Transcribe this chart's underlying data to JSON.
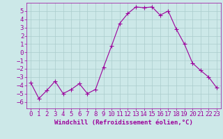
{
  "x": [
    0,
    1,
    2,
    3,
    4,
    5,
    6,
    7,
    8,
    9,
    10,
    11,
    12,
    13,
    14,
    15,
    16,
    17,
    18,
    19,
    20,
    21,
    22,
    23
  ],
  "y": [
    -3.7,
    -5.6,
    -4.6,
    -3.5,
    -5.0,
    -4.5,
    -3.8,
    -5.0,
    -4.5,
    -1.8,
    0.8,
    3.5,
    4.7,
    5.5,
    5.4,
    5.5,
    4.5,
    5.0,
    2.8,
    1.0,
    -1.3,
    -2.2,
    -3.0,
    -4.3
  ],
  "line_color": "#9b009b",
  "marker": "+",
  "marker_size": 4,
  "background_color": "#cce8e8",
  "grid_color": "#aacccc",
  "xlabel": "Windchill (Refroidissement éolien,°C)",
  "xlabel_color": "#9b009b",
  "ylim": [
    -6.8,
    6.0
  ],
  "xlim": [
    -0.5,
    23.5
  ],
  "yticks": [
    -6,
    -5,
    -4,
    -3,
    -2,
    -1,
    0,
    1,
    2,
    3,
    4,
    5
  ],
  "xticks": [
    0,
    1,
    2,
    3,
    4,
    5,
    6,
    7,
    8,
    9,
    10,
    11,
    12,
    13,
    14,
    15,
    16,
    17,
    18,
    19,
    20,
    21,
    22,
    23
  ],
  "tick_color": "#9b009b",
  "spine_color": "#9b009b",
  "font_size": 6.5,
  "label_font_size": 6.5
}
